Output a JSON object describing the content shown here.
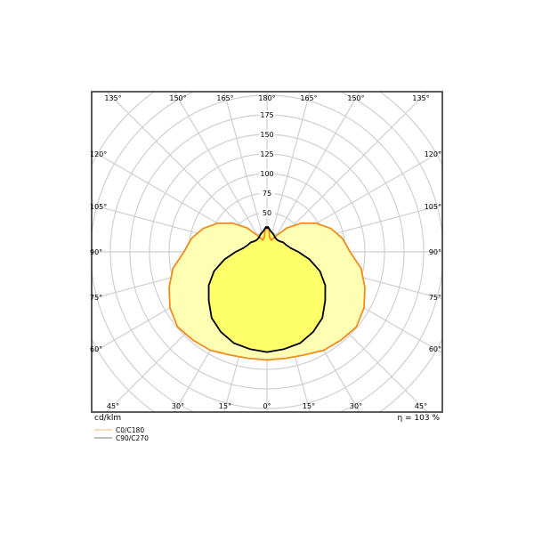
{
  "chart_data": {
    "type": "polar",
    "unit_label": "cd/klm",
    "efficiency_label": "η = 103 %",
    "radial_ticks": [
      50,
      75,
      100,
      125,
      150,
      175
    ],
    "radial_max": 200,
    "angle_labels_top": [
      "135°",
      "150°",
      "165°",
      "180°",
      "165°",
      "150°",
      "135°"
    ],
    "angle_labels_bottom": [
      "45°",
      "30°",
      "15°",
      "0°",
      "15°",
      "30°",
      "45°"
    ],
    "angle_labels_side": [
      "120°",
      "105°",
      "90°",
      "75°",
      "60°"
    ],
    "grid": true,
    "colors": {
      "c0": "#f08c1e",
      "c90": "#000000",
      "fill_outer": "#ffffb0",
      "fill_inner": "#ffff60",
      "grid": "#d0d0d0"
    },
    "series": [
      {
        "name": "C0/C180",
        "gamma": [
          0,
          10,
          20,
          30,
          40,
          50,
          60,
          70,
          80,
          90,
          100,
          110,
          120,
          130,
          140,
          150,
          160,
          170,
          175,
          178,
          180
        ],
        "values": [
          138,
          138,
          140,
          145,
          147,
          149,
          143,
          133,
          122,
          106,
          98,
          87,
          73,
          57,
          40,
          24,
          16,
          19,
          28,
          32,
          30
        ]
      },
      {
        "name": "C90/C270",
        "gamma": [
          0,
          10,
          20,
          30,
          40,
          50,
          60,
          70,
          80,
          90,
          100,
          110,
          120,
          130,
          140,
          150,
          160,
          170,
          175,
          178,
          180
        ],
        "values": [
          128,
          126,
          124,
          118,
          110,
          97,
          86,
          72,
          55,
          40,
          30,
          26,
          24,
          21,
          20,
          21,
          24,
          27,
          30,
          32,
          30
        ]
      }
    ]
  }
}
